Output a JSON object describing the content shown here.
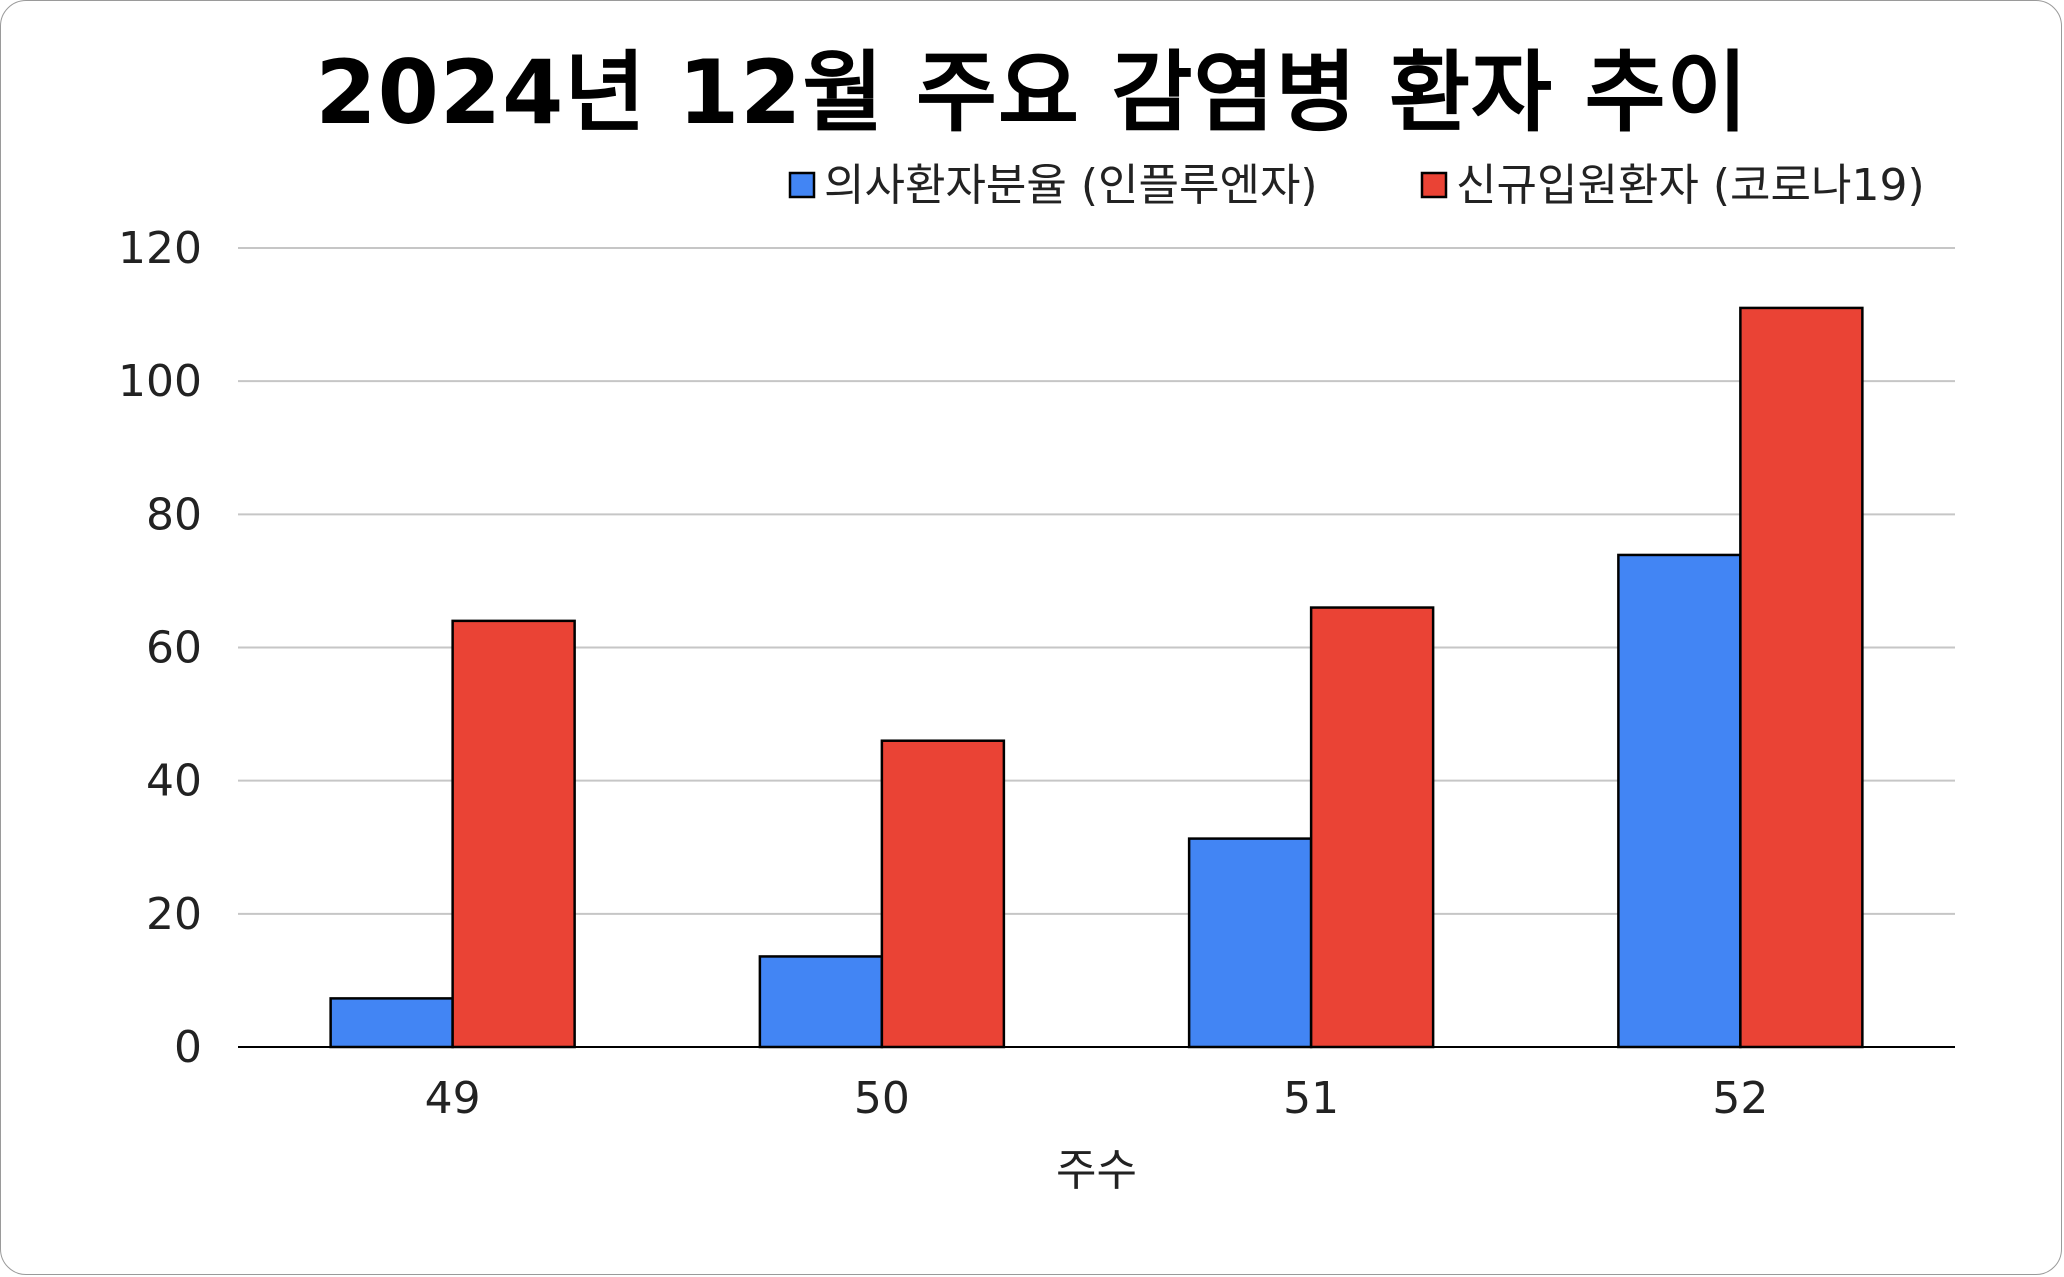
{
  "chart_data": {
    "type": "bar",
    "title": "2024년 12월 주요 감염병 환자 추이",
    "xlabel": "주수",
    "ylabel": "",
    "categories": [
      "49",
      "50",
      "51",
      "52"
    ],
    "series": [
      {
        "name": "의사환자분율 (인플루엔자)",
        "color": "#4285F4",
        "values": [
          7.3,
          13.6,
          31.3,
          73.9
        ]
      },
      {
        "name": "신규입원환자 (코로나19)",
        "color": "#EA4335",
        "values": [
          64,
          46,
          66,
          111
        ]
      }
    ],
    "ylim": [
      0,
      120
    ],
    "yticks": [
      0,
      20,
      40,
      60,
      80,
      100,
      120
    ],
    "grid": true,
    "legend": "top-right"
  }
}
